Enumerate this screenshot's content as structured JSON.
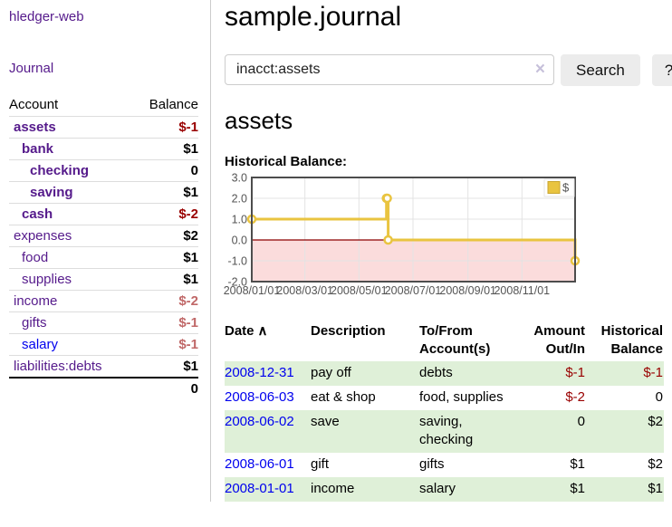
{
  "sidebar": {
    "brand": "hledger-web",
    "nav_journal": "Journal",
    "accounts_table": {
      "account_header": "Account",
      "balance_header": "Balance",
      "rows": [
        {
          "name": "assets",
          "depth": 1,
          "bold": true,
          "visited": true,
          "balance": "$-1"
        },
        {
          "name": "bank",
          "depth": 2,
          "bold": true,
          "visited": true,
          "balance": "$1"
        },
        {
          "name": "checking",
          "depth": 3,
          "bold": true,
          "visited": true,
          "balance": "0"
        },
        {
          "name": "saving",
          "depth": 3,
          "bold": true,
          "visited": true,
          "balance": "$1"
        },
        {
          "name": "cash",
          "depth": 2,
          "bold": true,
          "visited": true,
          "balance": "$-2"
        },
        {
          "name": "expenses",
          "depth": 1,
          "bold": false,
          "visited": true,
          "balance": "$2"
        },
        {
          "name": "food",
          "depth": 2,
          "bold": false,
          "visited": true,
          "balance": "$1"
        },
        {
          "name": "supplies",
          "depth": 2,
          "bold": false,
          "visited": true,
          "balance": "$1"
        },
        {
          "name": "income",
          "depth": 1,
          "bold": false,
          "visited": true,
          "balance": "$-2"
        },
        {
          "name": "gifts",
          "depth": 2,
          "bold": false,
          "visited": true,
          "balance": "$-1"
        },
        {
          "name": "salary",
          "depth": 2,
          "bold": false,
          "visited": false,
          "balance": "$-1"
        },
        {
          "name": "liabilities:debts",
          "depth": 1,
          "bold": false,
          "visited": true,
          "balance": "$1"
        }
      ],
      "total": "0"
    }
  },
  "header": {
    "title": "sample.journal"
  },
  "search": {
    "value": "inacct:assets",
    "clear_icon": "×",
    "button_label": "Search",
    "help_label": "?"
  },
  "account_page": {
    "title": "assets",
    "chart_label": "Historical Balance:"
  },
  "chart_data": {
    "type": "line",
    "step": true,
    "title": "Historical Balance:",
    "legend": {
      "label": "$",
      "position": "top-right"
    },
    "x_range": [
      "2008-01-01",
      "2008-12-31"
    ],
    "ylim": [
      -2,
      3
    ],
    "y_ticks": [
      {
        "label": "3.0",
        "value": 3
      },
      {
        "label": "2.0",
        "value": 2
      },
      {
        "label": "1.0",
        "value": 1
      },
      {
        "label": "0.0",
        "value": 0
      },
      {
        "label": "-1.0",
        "value": -1
      },
      {
        "label": "-2.0",
        "value": -2
      }
    ],
    "x_ticks": [
      {
        "label": "2008/01/01",
        "date": "2008-01-01",
        "grid": false
      },
      {
        "label": "2008/03/01",
        "date": "2008-03-01",
        "grid": true
      },
      {
        "label": "2008/05/01",
        "date": "2008-05-01",
        "grid": true
      },
      {
        "label": "2008/07/01",
        "date": "2008-07-01",
        "grid": true
      },
      {
        "label": "2008/09/01",
        "date": "2008-09-01",
        "grid": true
      },
      {
        "label": "2008/11/01",
        "date": "2008-11-01",
        "grid": true
      }
    ],
    "series": [
      {
        "name": "$",
        "color": "#e9c440",
        "marker_fill": "#ffffff",
        "points": [
          [
            "2008-01-01",
            1
          ],
          [
            "2008-06-01",
            2
          ],
          [
            "2008-06-02",
            2
          ],
          [
            "2008-06-03",
            0
          ],
          [
            "2008-12-31",
            -1
          ]
        ]
      }
    ],
    "style": {
      "grid_color": "#e3e3e3",
      "border_color": "#4d4d4d",
      "tick_color": "#545454",
      "zero_line_color": "#8b0000",
      "negative_region_fill": "#fbdcdc"
    }
  },
  "register_table": {
    "columns": [
      "Date",
      "Description",
      "To/From Account(s)",
      "Amount Out/In",
      "Historical Balance"
    ],
    "sort_indicator": "∧",
    "rows": [
      {
        "date": "2008-12-31",
        "description": "pay off",
        "accounts": "debts",
        "amount": "$-1",
        "balance": "$-1"
      },
      {
        "date": "2008-06-03",
        "description": "eat & shop",
        "accounts": "food, supplies",
        "amount": "$-2",
        "balance": "0"
      },
      {
        "date": "2008-06-02",
        "description": "save",
        "accounts": "saving, checking",
        "amount": "0",
        "balance": "$2"
      },
      {
        "date": "2008-06-01",
        "description": "gift",
        "accounts": "gifts",
        "amount": "$1",
        "balance": "$2"
      },
      {
        "date": "2008-01-01",
        "description": "income",
        "accounts": "salary",
        "amount": "$1",
        "balance": "$1"
      }
    ]
  }
}
